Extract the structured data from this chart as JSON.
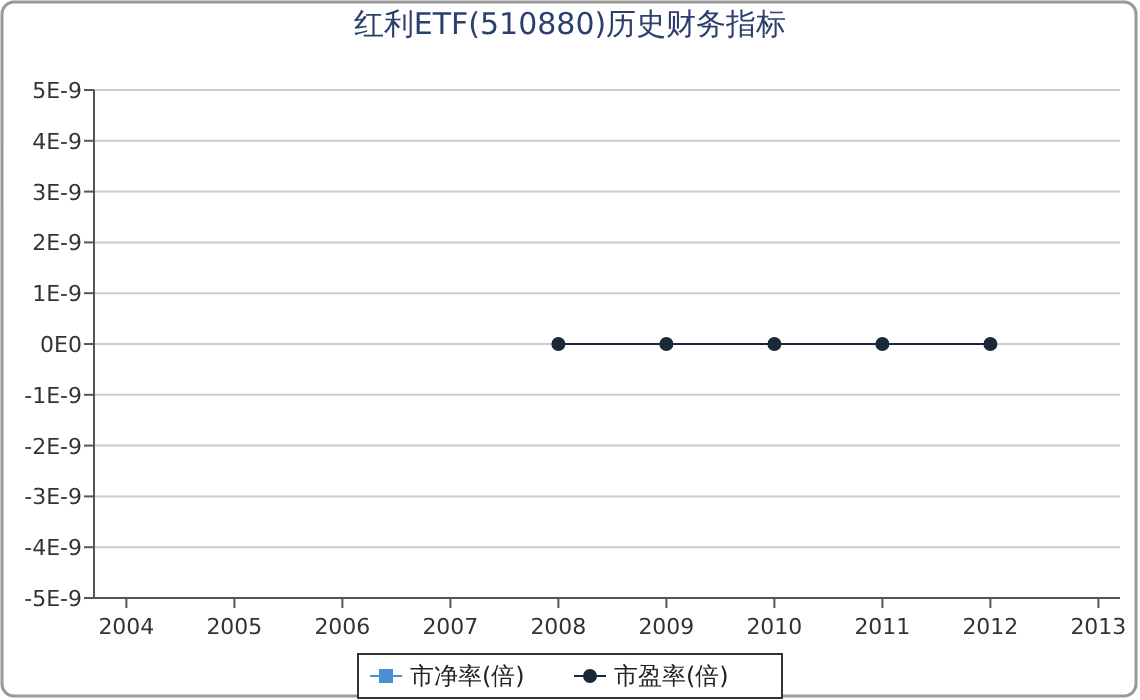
{
  "chart_data": {
    "type": "line",
    "title": "红利ETF(510880)历史财务指标",
    "x": [
      2008,
      2009,
      2010,
      2011,
      2012
    ],
    "series": [
      {
        "name": "市净率(倍)",
        "color": "#4a90d9",
        "marker": "square",
        "values": [
          null,
          null,
          null,
          null,
          null
        ]
      },
      {
        "name": "市盈率(倍)",
        "color": "#1b2838",
        "marker": "circle",
        "values": [
          0,
          0,
          0,
          0,
          0
        ]
      }
    ],
    "xlim": [
      2003.7,
      2013.2
    ],
    "xticks": [
      2004,
      2005,
      2006,
      2007,
      2008,
      2009,
      2010,
      2011,
      2012,
      2013
    ],
    "ylim": [
      -5e-09,
      5e-09
    ],
    "yticks": [
      {
        "value": -5e-09,
        "label": "-5E-9"
      },
      {
        "value": -4e-09,
        "label": "-4E-9"
      },
      {
        "value": -3e-09,
        "label": "-3E-9"
      },
      {
        "value": -2e-09,
        "label": "-2E-9"
      },
      {
        "value": -1e-09,
        "label": "-1E-9"
      },
      {
        "value": 0,
        "label": "0E0"
      },
      {
        "value": 1e-09,
        "label": "1E-9"
      },
      {
        "value": 2e-09,
        "label": "2E-9"
      },
      {
        "value": 3e-09,
        "label": "3E-9"
      },
      {
        "value": 4e-09,
        "label": "4E-9"
      },
      {
        "value": 5e-09,
        "label": "5E-9"
      }
    ],
    "grid": "y",
    "legend": "bottom"
  }
}
